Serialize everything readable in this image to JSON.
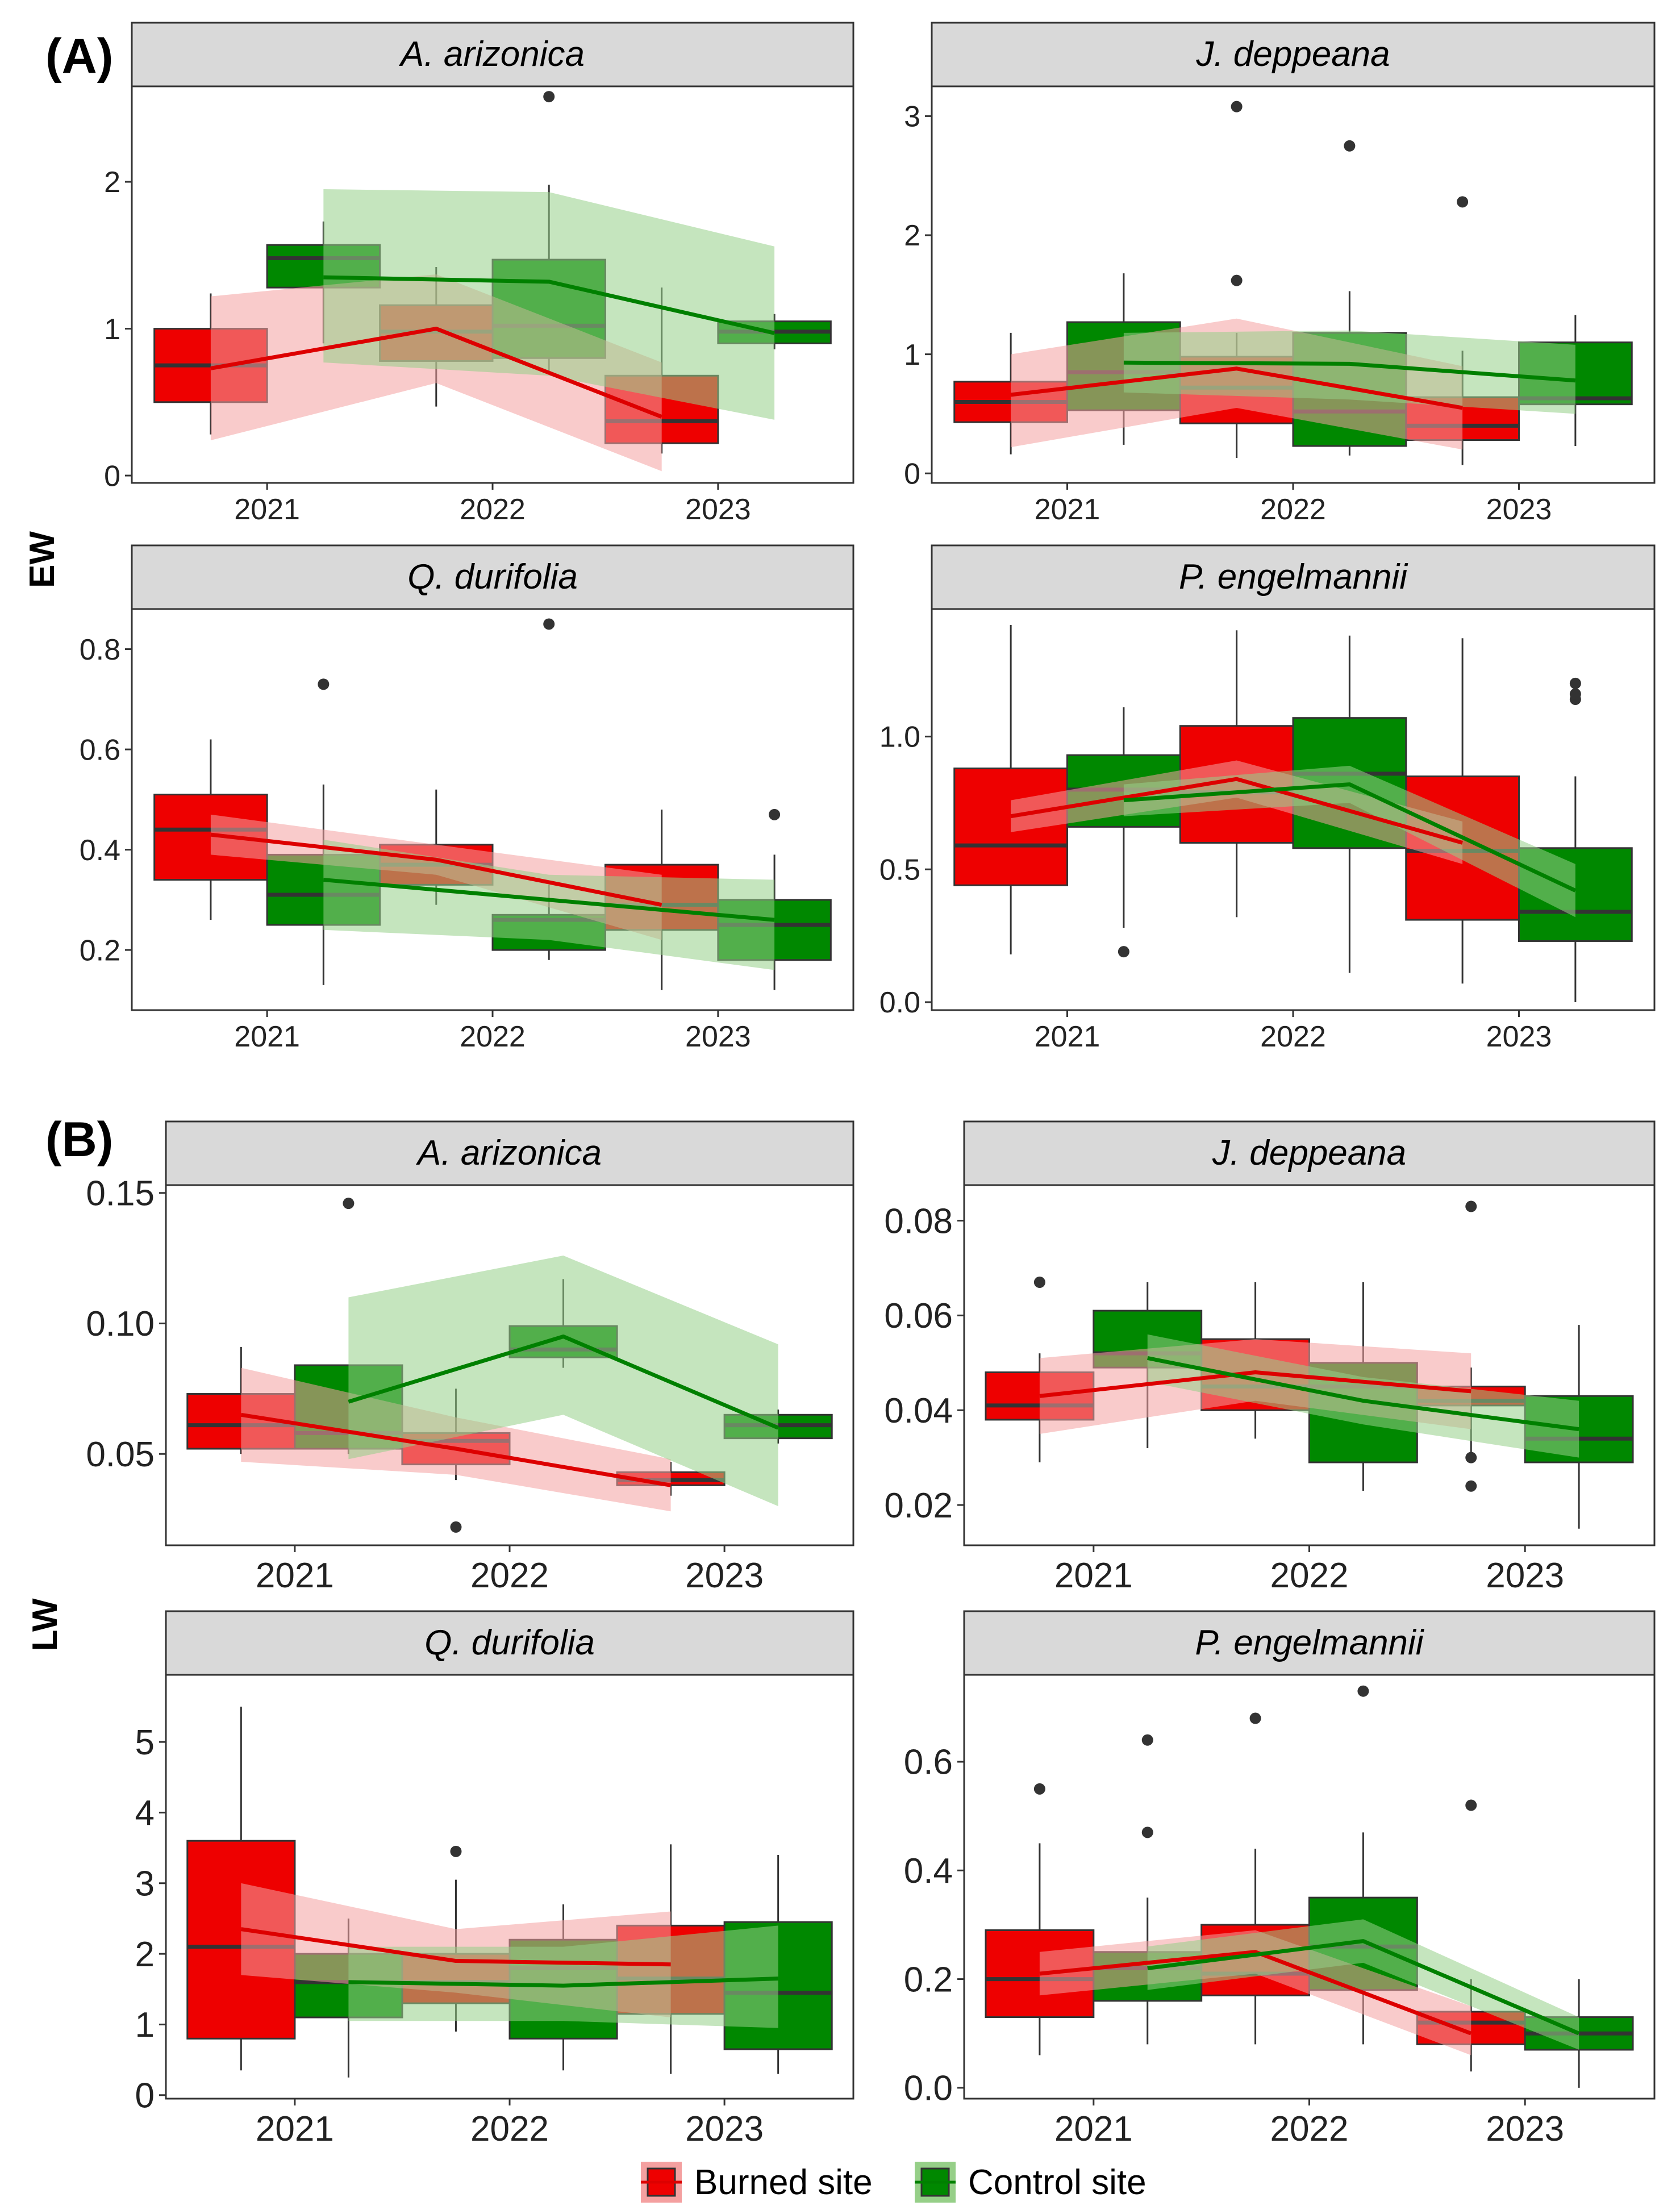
{
  "figure": {
    "section_labels": [
      "(A)",
      "(B)"
    ],
    "row_labels": [
      "EW",
      "LW"
    ]
  },
  "legend": {
    "items": [
      {
        "label": "Burned site",
        "color": "#ee0000",
        "ribbon": "#f4a0a0",
        "line": "#dd0000"
      },
      {
        "label": "Control site",
        "color": "#008800",
        "ribbon": "#96cf88",
        "line": "#008000"
      }
    ]
  },
  "chart_data": [
    {
      "type": "boxplot",
      "panel": "A-1",
      "title": "A. arizonica",
      "ylabel": "EW",
      "categories": [
        "2021",
        "2022",
        "2023"
      ],
      "ylim": [
        -0.05,
        2.65
      ],
      "yticks": [
        0,
        1,
        2
      ],
      "ytick_labels": [
        "0",
        "1",
        "2"
      ],
      "series": [
        {
          "name": "Burned site",
          "boxes": [
            {
              "q1": 0.5,
              "median": 0.75,
              "q3": 1.0,
              "min": 0.28,
              "max": 1.24,
              "outliers": []
            },
            {
              "q1": 0.78,
              "median": 0.98,
              "q3": 1.16,
              "min": 0.47,
              "max": 1.42,
              "outliers": []
            },
            {
              "q1": 0.22,
              "median": 0.37,
              "q3": 0.68,
              "min": 0.15,
              "max": 1.28,
              "outliers": []
            }
          ],
          "trend": [
            0.73,
            1.0,
            0.4
          ],
          "ribbon_low": [
            0.24,
            0.63,
            0.03
          ],
          "ribbon_high": [
            1.22,
            1.37,
            0.77
          ]
        },
        {
          "name": "Control site",
          "boxes": [
            {
              "q1": 1.28,
              "median": 1.48,
              "q3": 1.57,
              "min": 0.9,
              "max": 1.73,
              "outliers": []
            },
            {
              "q1": 0.8,
              "median": 1.02,
              "q3": 1.47,
              "min": 0.7,
              "max": 1.98,
              "outliers": [
                2.58
              ]
            },
            {
              "q1": 0.9,
              "median": 0.98,
              "q3": 1.05,
              "min": 0.86,
              "max": 1.1,
              "outliers": []
            }
          ],
          "trend": [
            1.35,
            1.32,
            0.97
          ],
          "ribbon_low": [
            0.77,
            0.68,
            0.38
          ],
          "ribbon_high": [
            1.95,
            1.93,
            1.56
          ]
        }
      ]
    },
    {
      "type": "boxplot",
      "panel": "A-2",
      "title": "J. deppeana",
      "ylabel": "EW",
      "categories": [
        "2021",
        "2022",
        "2023"
      ],
      "ylim": [
        -0.08,
        3.25
      ],
      "yticks": [
        0,
        1,
        2,
        3
      ],
      "ytick_labels": [
        "0",
        "1",
        "2",
        "3"
      ],
      "series": [
        {
          "name": "Burned site",
          "boxes": [
            {
              "q1": 0.43,
              "median": 0.6,
              "q3": 0.77,
              "min": 0.16,
              "max": 1.18,
              "outliers": []
            },
            {
              "q1": 0.42,
              "median": 0.72,
              "q3": 0.98,
              "min": 0.13,
              "max": 1.18,
              "outliers": [
                1.62,
                3.08
              ]
            },
            {
              "q1": 0.28,
              "median": 0.4,
              "q3": 0.64,
              "min": 0.07,
              "max": 1.03,
              "outliers": [
                2.28
              ]
            }
          ],
          "trend": [
            0.66,
            0.88,
            0.55
          ],
          "ribbon_low": [
            0.22,
            0.55,
            0.2
          ],
          "ribbon_high": [
            1.0,
            1.3,
            0.9
          ]
        },
        {
          "name": "Control site",
          "boxes": [
            {
              "q1": 0.53,
              "median": 0.85,
              "q3": 1.27,
              "min": 0.24,
              "max": 1.68,
              "outliers": []
            },
            {
              "q1": 0.23,
              "median": 0.52,
              "q3": 1.18,
              "min": 0.15,
              "max": 1.53,
              "outliers": [
                2.75
              ]
            },
            {
              "q1": 0.58,
              "median": 0.63,
              "q3": 1.1,
              "min": 0.23,
              "max": 1.33,
              "outliers": []
            }
          ],
          "trend": [
            0.93,
            0.92,
            0.78
          ],
          "ribbon_low": [
            0.68,
            0.62,
            0.5
          ],
          "ribbon_high": [
            1.18,
            1.2,
            1.08
          ]
        }
      ]
    },
    {
      "type": "boxplot",
      "panel": "A-3",
      "title": "Q. durifolia",
      "ylabel": "EW",
      "categories": [
        "2021",
        "2022",
        "2023"
      ],
      "ylim": [
        0.08,
        0.88
      ],
      "yticks": [
        0.2,
        0.4,
        0.6,
        0.8
      ],
      "ytick_labels": [
        "0.2",
        "0.4",
        "0.6",
        "0.8"
      ],
      "series": [
        {
          "name": "Burned site",
          "boxes": [
            {
              "q1": 0.34,
              "median": 0.44,
              "q3": 0.51,
              "min": 0.26,
              "max": 0.62,
              "outliers": []
            },
            {
              "q1": 0.33,
              "median": 0.37,
              "q3": 0.41,
              "min": 0.29,
              "max": 0.52,
              "outliers": []
            },
            {
              "q1": 0.24,
              "median": 0.29,
              "q3": 0.37,
              "min": 0.12,
              "max": 0.48,
              "outliers": []
            }
          ],
          "trend": [
            0.43,
            0.38,
            0.29
          ],
          "ribbon_low": [
            0.39,
            0.35,
            0.22
          ],
          "ribbon_high": [
            0.47,
            0.41,
            0.35
          ]
        },
        {
          "name": "Control site",
          "boxes": [
            {
              "q1": 0.25,
              "median": 0.31,
              "q3": 0.39,
              "min": 0.13,
              "max": 0.53,
              "outliers": [
                0.73
              ]
            },
            {
              "q1": 0.2,
              "median": 0.26,
              "q3": 0.27,
              "min": 0.18,
              "max": 0.33,
              "outliers": [
                0.85
              ]
            },
            {
              "q1": 0.18,
              "median": 0.25,
              "q3": 0.3,
              "min": 0.12,
              "max": 0.39,
              "outliers": [
                0.47
              ]
            }
          ],
          "trend": [
            0.34,
            0.3,
            0.26
          ],
          "ribbon_low": [
            0.24,
            0.22,
            0.16
          ],
          "ribbon_high": [
            0.42,
            0.35,
            0.34
          ]
        }
      ]
    },
    {
      "type": "boxplot",
      "panel": "A-4",
      "title": "P. engelmannii",
      "ylabel": "EW",
      "categories": [
        "2021",
        "2022",
        "2023"
      ],
      "ylim": [
        -0.03,
        1.48
      ],
      "yticks": [
        0.0,
        0.5,
        1.0
      ],
      "ytick_labels": [
        "0.0",
        "0.5",
        "1.0"
      ],
      "series": [
        {
          "name": "Burned site",
          "boxes": [
            {
              "q1": 0.44,
              "median": 0.59,
              "q3": 0.88,
              "min": 0.18,
              "max": 1.42,
              "outliers": []
            },
            {
              "q1": 0.6,
              "median": 0.79,
              "q3": 1.04,
              "min": 0.32,
              "max": 1.4,
              "outliers": []
            },
            {
              "q1": 0.31,
              "median": 0.57,
              "q3": 0.85,
              "min": 0.07,
              "max": 1.37,
              "outliers": []
            }
          ],
          "trend": [
            0.7,
            0.84,
            0.6
          ],
          "ribbon_low": [
            0.64,
            0.77,
            0.52
          ],
          "ribbon_high": [
            0.76,
            0.91,
            0.68
          ]
        },
        {
          "name": "Control site",
          "boxes": [
            {
              "q1": 0.66,
              "median": 0.8,
              "q3": 0.93,
              "min": 0.28,
              "max": 1.11,
              "outliers": [
                0.19
              ]
            },
            {
              "q1": 0.58,
              "median": 0.86,
              "q3": 1.07,
              "min": 0.11,
              "max": 1.38,
              "outliers": []
            },
            {
              "q1": 0.23,
              "median": 0.34,
              "q3": 0.58,
              "min": 0.0,
              "max": 0.85,
              "outliers": [
                1.14,
                1.16,
                1.2
              ]
            }
          ],
          "trend": [
            0.76,
            0.82,
            0.42
          ],
          "ribbon_low": [
            0.7,
            0.75,
            0.32
          ],
          "ribbon_high": [
            0.82,
            0.89,
            0.52
          ]
        }
      ]
    },
    {
      "type": "boxplot",
      "panel": "B-1",
      "title": "A. arizonica",
      "ylabel": "LW",
      "categories": [
        "2021",
        "2022",
        "2023"
      ],
      "ylim": [
        0.015,
        0.153
      ],
      "yticks": [
        0.05,
        0.1,
        0.15
      ],
      "ytick_labels": [
        "0.05",
        "0.10",
        "0.15"
      ],
      "series": [
        {
          "name": "Burned site",
          "boxes": [
            {
              "q1": 0.052,
              "median": 0.061,
              "q3": 0.073,
              "min": 0.05,
              "max": 0.091,
              "outliers": []
            },
            {
              "q1": 0.046,
              "median": 0.055,
              "q3": 0.058,
              "min": 0.04,
              "max": 0.075,
              "outliers": [
                0.022
              ]
            },
            {
              "q1": 0.038,
              "median": 0.04,
              "q3": 0.043,
              "min": 0.034,
              "max": 0.047,
              "outliers": []
            }
          ],
          "trend": [
            0.065,
            0.052,
            0.038
          ],
          "ribbon_low": [
            0.047,
            0.042,
            0.028
          ],
          "ribbon_high": [
            0.083,
            0.064,
            0.048
          ]
        },
        {
          "name": "Control site",
          "boxes": [
            {
              "q1": 0.052,
              "median": 0.058,
              "q3": 0.084,
              "min": 0.05,
              "max": 0.084,
              "outliers": [
                0.146
              ]
            },
            {
              "q1": 0.087,
              "median": 0.09,
              "q3": 0.099,
              "min": 0.083,
              "max": 0.117,
              "outliers": []
            },
            {
              "q1": 0.056,
              "median": 0.061,
              "q3": 0.065,
              "min": 0.054,
              "max": 0.067,
              "outliers": []
            }
          ],
          "trend": [
            0.07,
            0.095,
            0.06
          ],
          "ribbon_low": [
            0.048,
            0.065,
            0.03
          ],
          "ribbon_high": [
            0.11,
            0.126,
            0.092
          ]
        }
      ]
    },
    {
      "type": "boxplot",
      "panel": "B-2",
      "title": "J. deppeana",
      "ylabel": "LW",
      "categories": [
        "2021",
        "2022",
        "2023"
      ],
      "ylim": [
        0.0115,
        0.0875
      ],
      "yticks": [
        0.02,
        0.04,
        0.06,
        0.08
      ],
      "ytick_labels": [
        "0.02",
        "0.04",
        "0.06",
        "0.08"
      ],
      "series": [
        {
          "name": "Burned site",
          "boxes": [
            {
              "q1": 0.038,
              "median": 0.041,
              "q3": 0.048,
              "min": 0.029,
              "max": 0.052,
              "outliers": [
                0.067
              ]
            },
            {
              "q1": 0.04,
              "median": 0.045,
              "q3": 0.055,
              "min": 0.034,
              "max": 0.067,
              "outliers": []
            },
            {
              "q1": 0.041,
              "median": 0.042,
              "q3": 0.045,
              "min": 0.031,
              "max": 0.049,
              "outliers": [
                0.024,
                0.03,
                0.083
              ]
            }
          ],
          "trend": [
            0.043,
            0.048,
            0.044
          ],
          "ribbon_low": [
            0.035,
            0.042,
            0.036
          ],
          "ribbon_high": [
            0.051,
            0.055,
            0.052
          ]
        },
        {
          "name": "Control site",
          "boxes": [
            {
              "q1": 0.049,
              "median": 0.052,
              "q3": 0.061,
              "min": 0.032,
              "max": 0.067,
              "outliers": []
            },
            {
              "q1": 0.029,
              "median": 0.045,
              "q3": 0.05,
              "min": 0.023,
              "max": 0.067,
              "outliers": []
            },
            {
              "q1": 0.029,
              "median": 0.034,
              "q3": 0.043,
              "min": 0.015,
              "max": 0.058,
              "outliers": []
            }
          ],
          "trend": [
            0.051,
            0.042,
            0.036
          ],
          "ribbon_low": [
            0.046,
            0.037,
            0.03
          ],
          "ribbon_high": [
            0.056,
            0.047,
            0.042
          ]
        }
      ]
    },
    {
      "type": "boxplot",
      "panel": "B-3",
      "title": "Q. durifolia",
      "ylabel": "LW",
      "categories": [
        "2021",
        "2022",
        "2023"
      ],
      "ylim": [
        -0.05,
        5.95
      ],
      "yticks": [
        0,
        1,
        2,
        3,
        4,
        5
      ],
      "ytick_labels": [
        "0",
        "1",
        "2",
        "3",
        "4",
        "5"
      ],
      "series": [
        {
          "name": "Burned site",
          "boxes": [
            {
              "q1": 0.8,
              "median": 2.1,
              "q3": 3.6,
              "min": 0.35,
              "max": 5.5,
              "outliers": []
            },
            {
              "q1": 1.3,
              "median": 1.6,
              "q3": 2.0,
              "min": 0.9,
              "max": 3.05,
              "outliers": [
                3.45
              ]
            },
            {
              "q1": 1.15,
              "median": 1.65,
              "q3": 2.4,
              "min": 0.3,
              "max": 3.55,
              "outliers": []
            }
          ],
          "trend": [
            2.35,
            1.9,
            1.85
          ],
          "ribbon_low": [
            1.7,
            1.45,
            1.1
          ],
          "ribbon_high": [
            3.0,
            2.35,
            2.6
          ]
        },
        {
          "name": "Control site",
          "boxes": [
            {
              "q1": 1.1,
              "median": 1.6,
              "q3": 2.0,
              "min": 0.25,
              "max": 2.5,
              "outliers": []
            },
            {
              "q1": 0.8,
              "median": 1.8,
              "q3": 2.2,
              "min": 0.35,
              "max": 2.7,
              "outliers": []
            },
            {
              "q1": 0.65,
              "median": 1.45,
              "q3": 2.45,
              "min": 0.3,
              "max": 3.4,
              "outliers": []
            }
          ],
          "trend": [
            1.6,
            1.55,
            1.65
          ],
          "ribbon_low": [
            1.05,
            1.05,
            0.95
          ],
          "ribbon_high": [
            2.1,
            2.1,
            2.4
          ]
        }
      ]
    },
    {
      "type": "boxplot",
      "panel": "B-4",
      "title": "P. engelmannii",
      "ylabel": "LW",
      "categories": [
        "2021",
        "2022",
        "2023"
      ],
      "ylim": [
        -0.02,
        0.76
      ],
      "yticks": [
        0.0,
        0.2,
        0.4,
        0.6
      ],
      "ytick_labels": [
        "0.0",
        "0.2",
        "0.4",
        "0.6"
      ],
      "series": [
        {
          "name": "Burned site",
          "boxes": [
            {
              "q1": 0.13,
              "median": 0.2,
              "q3": 0.29,
              "min": 0.06,
              "max": 0.45,
              "outliers": [
                0.55
              ]
            },
            {
              "q1": 0.17,
              "median": 0.21,
              "q3": 0.3,
              "min": 0.08,
              "max": 0.44,
              "outliers": [
                0.68
              ]
            },
            {
              "q1": 0.08,
              "median": 0.12,
              "q3": 0.14,
              "min": 0.03,
              "max": 0.2,
              "outliers": [
                0.52
              ]
            }
          ],
          "trend": [
            0.21,
            0.25,
            0.1
          ],
          "ribbon_low": [
            0.17,
            0.21,
            0.06
          ],
          "ribbon_high": [
            0.25,
            0.29,
            0.15
          ]
        },
        {
          "name": "Control site",
          "boxes": [
            {
              "q1": 0.16,
              "median": 0.22,
              "q3": 0.25,
              "min": 0.08,
              "max": 0.35,
              "outliers": [
                0.47,
                0.64
              ]
            },
            {
              "q1": 0.18,
              "median": 0.26,
              "q3": 0.35,
              "min": 0.08,
              "max": 0.47,
              "outliers": [
                0.73
              ]
            },
            {
              "q1": 0.07,
              "median": 0.1,
              "q3": 0.13,
              "min": 0.0,
              "max": 0.2,
              "outliers": []
            }
          ],
          "trend": [
            0.22,
            0.27,
            0.1
          ],
          "ribbon_low": [
            0.18,
            0.23,
            0.07
          ],
          "ribbon_high": [
            0.26,
            0.31,
            0.13
          ]
        }
      ]
    }
  ]
}
